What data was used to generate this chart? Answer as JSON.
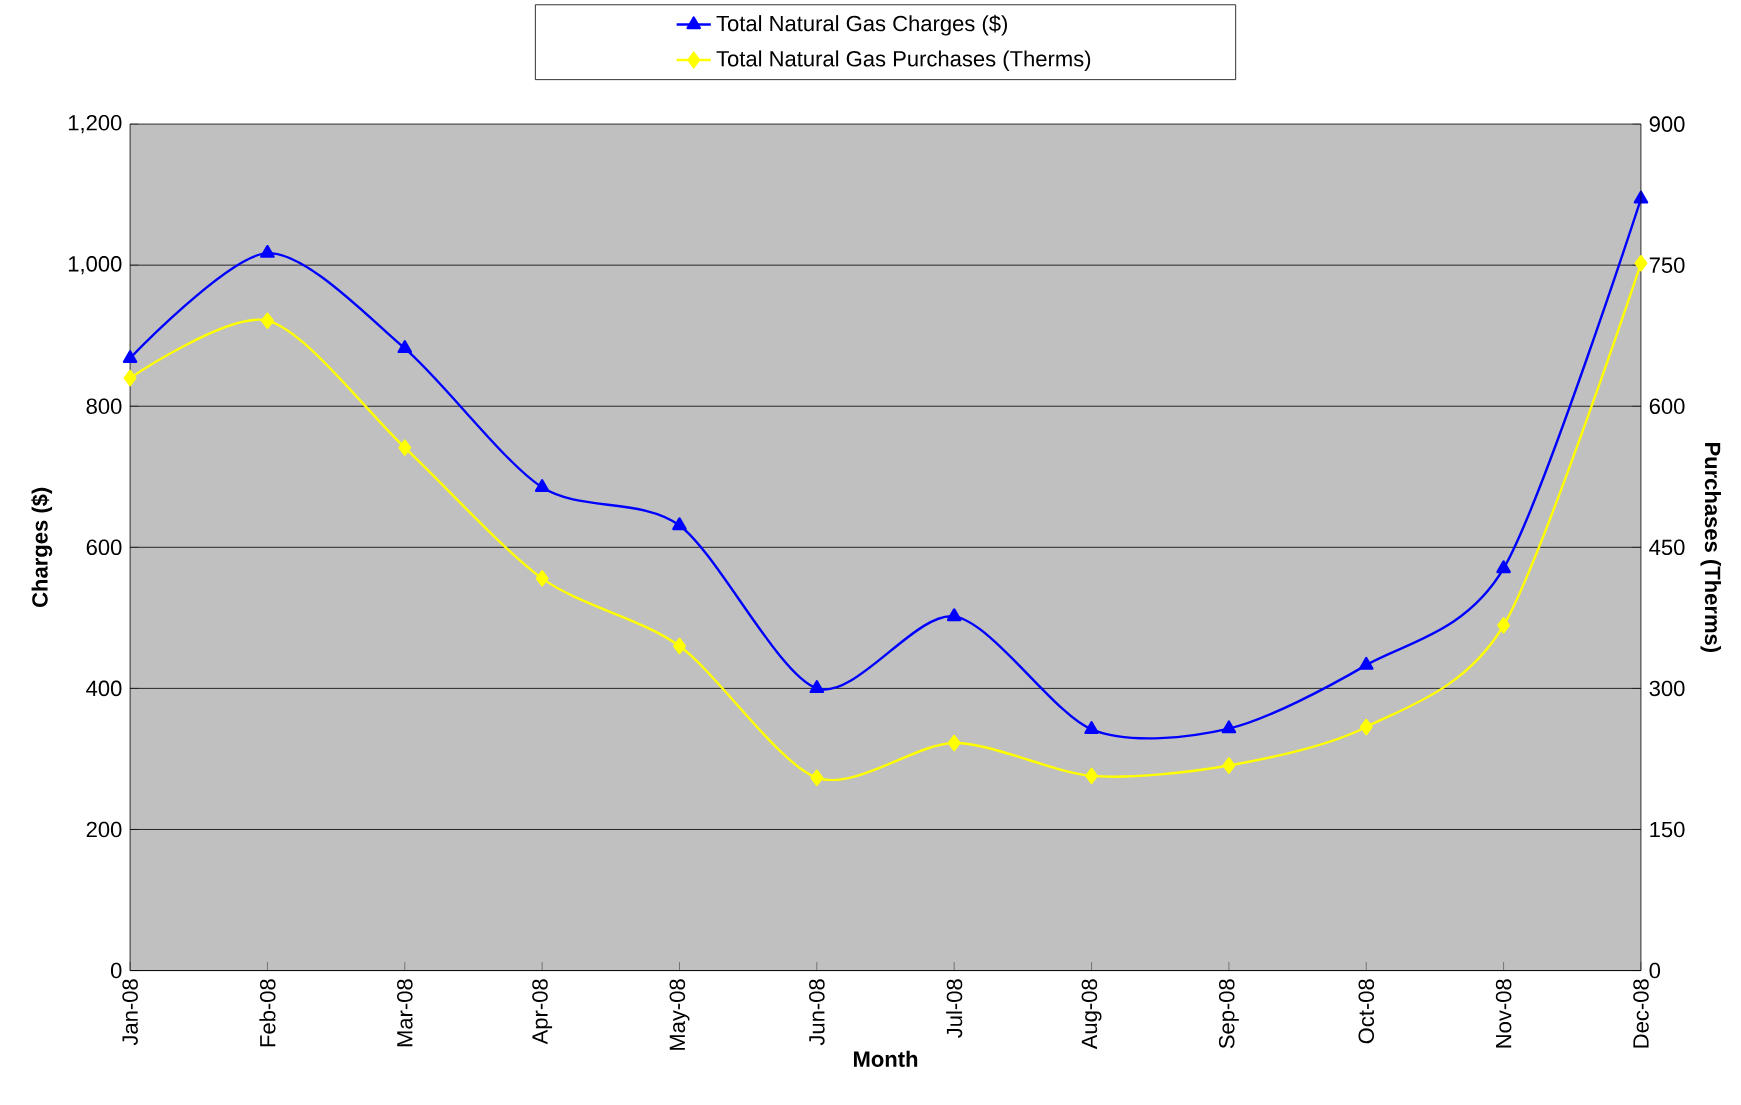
{
  "chart_data": {
    "type": "line",
    "xlabel": "Month",
    "ylabel": "Charges ($)",
    "y2label": "Purchases (Therms)",
    "categories": [
      "Jan-08",
      "Feb-08",
      "Mar-08",
      "Apr-08",
      "May-08",
      "Jun-08",
      "Jul-08",
      "Aug-08",
      "Sep-08",
      "Oct-08",
      "Nov-08",
      "Dec-08"
    ],
    "series": [
      {
        "name": "Total Natural Gas Charges ($)",
        "color": "#0000ff",
        "marker": "triangle",
        "values": [
          868,
          1017,
          882,
          685,
          631,
          400,
          502,
          342,
          343,
          433,
          570,
          1094
        ]
      },
      {
        "name": "Total Natural Gas Purchases (Therms)",
        "color": "#ffff00",
        "marker": "diamond",
        "axis": "y2",
        "values": [
          630,
          691,
          556,
          417,
          345,
          205,
          242,
          207,
          218,
          259,
          367,
          752
        ]
      }
    ],
    "ylim": [
      0,
      1200
    ],
    "yticks": [
      0,
      200,
      400,
      600,
      800,
      {
        "value": 1000,
        "label": "1,000"
      },
      {
        "value": 1200,
        "label": "1,200"
      }
    ],
    "y2lim": [
      0,
      900
    ],
    "y2ticks": [
      0,
      150,
      300,
      450,
      600,
      750,
      900
    ],
    "grid": "y",
    "legend": "top",
    "line_style": "solid"
  }
}
